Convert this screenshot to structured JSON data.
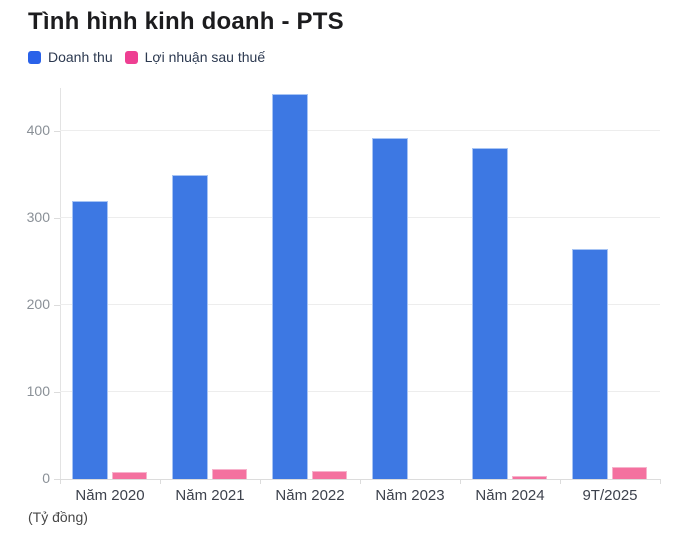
{
  "title": "Tình hình kinh doanh - PTS",
  "footnote": "(Tỷ đồng)",
  "legend": [
    {
      "label": "Doanh thu",
      "color": "#2a62e9"
    },
    {
      "label": "Lợi nhuận sau thuế",
      "color": "#ee3f92"
    }
  ],
  "chart_data": {
    "type": "bar",
    "title": "Tình hình kinh doanh - PTS",
    "unit_note": "(Tỷ đồng)",
    "categories": [
      "Năm 2020",
      "Năm 2021",
      "Năm 2022",
      "Năm 2023",
      "Năm 2024",
      "9T/2025"
    ],
    "series": [
      {
        "name": "Doanh thu",
        "color": "#3d78e3",
        "border_color": "#a7c4f4",
        "values": [
          320,
          350,
          443,
          392,
          381,
          265
        ]
      },
      {
        "name": "Lợi nhuận sau thuế",
        "color": "#f4719f",
        "border_color": "#f7b3cc",
        "values": [
          8,
          11,
          9,
          0,
          4,
          14
        ]
      }
    ],
    "xlabel": "",
    "ylabel": "Tỷ đồng",
    "y_ticks": [
      0,
      100,
      200,
      300,
      400
    ],
    "ylim": [
      0,
      450
    ],
    "grid": true,
    "legend_position": "top-left"
  },
  "colors": {
    "grid": "#ededed",
    "axis": "#dcdcdc",
    "y_label": "#8a9097",
    "x_label": "#3d424d",
    "title": "#1c1c1e",
    "legend_text": "#2c3950"
  }
}
